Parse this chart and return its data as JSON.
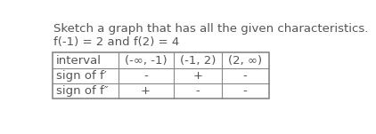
{
  "title_line1": "Sketch a graph that has all the given characteristics.",
  "title_line2": "f(-1) = 2 and f(2) = 4",
  "table": {
    "headers": [
      "interval",
      "(-∞, -1)",
      "(-1, 2)",
      "(2, ∞)"
    ],
    "rows": [
      [
        "sign of f′",
        "-",
        "+",
        "-"
      ],
      [
        "sign of f″",
        "+",
        "-",
        "-"
      ]
    ]
  },
  "background_color": "#ffffff",
  "text_color": "#555555",
  "border_color": "#888888",
  "font_size_title": 9.5,
  "font_size_table": 9.5
}
